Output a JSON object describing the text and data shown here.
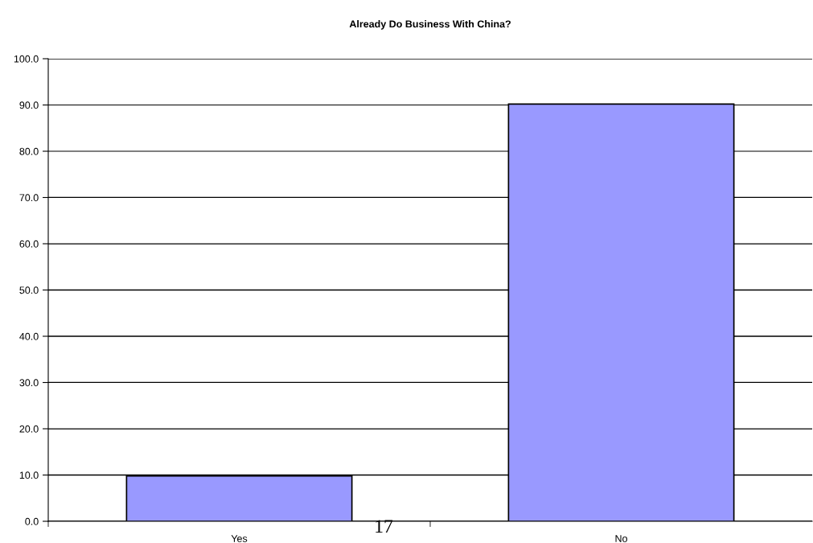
{
  "chart_data": {
    "type": "bar",
    "title": "Already Do Business With China?",
    "categories": [
      "Yes",
      "No"
    ],
    "values": [
      9.8,
      90.2
    ],
    "color": "#9999ff",
    "ylim": [
      0,
      100
    ],
    "yticks": [
      {
        "value": 0,
        "label": "0.0"
      },
      {
        "value": 10,
        "label": "10.0"
      },
      {
        "value": 20,
        "label": "20.0"
      },
      {
        "value": 30,
        "label": "30.0"
      },
      {
        "value": 40,
        "label": "40.0"
      },
      {
        "value": 50,
        "label": "50.0"
      },
      {
        "value": 60,
        "label": "60.0"
      },
      {
        "value": 70,
        "label": "70.0"
      },
      {
        "value": 80,
        "label": "80.0"
      },
      {
        "value": 90,
        "label": "90.0"
      },
      {
        "value": 100,
        "label": "100.0"
      }
    ],
    "grid": "y",
    "annotations": [
      "17"
    ]
  }
}
